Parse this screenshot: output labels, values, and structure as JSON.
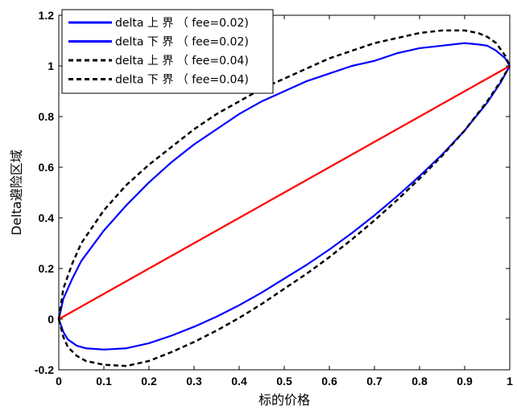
{
  "chart_data": {
    "type": "line",
    "xlabel": "标的价格",
    "ylabel": "Delta避险区域",
    "xlim": [
      0,
      1
    ],
    "ylim": [
      -0.2,
      1.2
    ],
    "xticks": [
      "0",
      "0.1",
      "0.2",
      "0.3",
      "0.4",
      "0.5",
      "0.6",
      "0.7",
      "0.8",
      "0.9",
      "1"
    ],
    "yticks": [
      "-0.2",
      "0",
      "0.2",
      "0.4",
      "0.6",
      "0.8",
      "1",
      "1.2"
    ],
    "legend_position": "top-left",
    "series": [
      {
        "name": "delta 上 界 （ fee=0.02)",
        "color": "#0000ff",
        "style": "solid",
        "in_legend": true,
        "x": [
          0,
          0.01,
          0.03,
          0.05,
          0.1,
          0.15,
          0.2,
          0.25,
          0.3,
          0.35,
          0.4,
          0.45,
          0.5,
          0.55,
          0.6,
          0.65,
          0.7,
          0.75,
          0.8,
          0.85,
          0.9,
          0.93,
          0.95,
          0.97,
          0.99,
          1
        ],
        "y": [
          0,
          0.08,
          0.16,
          0.23,
          0.35,
          0.45,
          0.54,
          0.62,
          0.69,
          0.75,
          0.81,
          0.86,
          0.9,
          0.94,
          0.97,
          1.0,
          1.02,
          1.05,
          1.07,
          1.08,
          1.09,
          1.085,
          1.08,
          1.06,
          1.03,
          1
        ]
      },
      {
        "name": "delta 下 界 （ fee=0.02)",
        "color": "#0000ff",
        "style": "solid",
        "in_legend": true,
        "x": [
          0,
          0.01,
          0.02,
          0.04,
          0.06,
          0.1,
          0.15,
          0.2,
          0.25,
          0.3,
          0.35,
          0.4,
          0.45,
          0.5,
          0.55,
          0.6,
          0.65,
          0.7,
          0.75,
          0.8,
          0.85,
          0.9,
          0.95,
          0.98,
          1
        ],
        "y": [
          0,
          -0.05,
          -0.08,
          -0.105,
          -0.115,
          -0.12,
          -0.115,
          -0.095,
          -0.065,
          -0.03,
          0.01,
          0.055,
          0.105,
          0.16,
          0.215,
          0.275,
          0.34,
          0.41,
          0.485,
          0.565,
          0.65,
          0.745,
          0.855,
          0.935,
          1
        ]
      },
      {
        "name": "delta 上 界 （ fee=0.04)",
        "color": "#000000",
        "style": "dashed",
        "in_legend": true,
        "x": [
          0,
          0.01,
          0.03,
          0.05,
          0.1,
          0.15,
          0.2,
          0.25,
          0.3,
          0.35,
          0.4,
          0.45,
          0.5,
          0.55,
          0.6,
          0.65,
          0.7,
          0.75,
          0.8,
          0.85,
          0.9,
          0.93,
          0.95,
          0.97,
          0.99,
          1
        ],
        "y": [
          0,
          0.12,
          0.22,
          0.3,
          0.43,
          0.53,
          0.61,
          0.68,
          0.75,
          0.81,
          0.86,
          0.91,
          0.95,
          0.99,
          1.03,
          1.06,
          1.09,
          1.11,
          1.13,
          1.14,
          1.14,
          1.13,
          1.115,
          1.09,
          1.04,
          1
        ]
      },
      {
        "name": "delta 下 界 （ fee=0.04)",
        "color": "#000000",
        "style": "dashed",
        "in_legend": true,
        "x": [
          0,
          0.01,
          0.02,
          0.04,
          0.06,
          0.1,
          0.15,
          0.2,
          0.25,
          0.3,
          0.35,
          0.4,
          0.45,
          0.5,
          0.55,
          0.6,
          0.65,
          0.7,
          0.75,
          0.8,
          0.85,
          0.9,
          0.95,
          0.98,
          1
        ],
        "y": [
          0,
          -0.07,
          -0.11,
          -0.145,
          -0.165,
          -0.18,
          -0.185,
          -0.165,
          -0.13,
          -0.09,
          -0.045,
          0.005,
          0.06,
          0.12,
          0.18,
          0.245,
          0.315,
          0.39,
          0.47,
          0.555,
          0.645,
          0.745,
          0.86,
          0.94,
          1
        ]
      },
      {
        "name": "",
        "color": "#ff0000",
        "style": "solid",
        "in_legend": false,
        "x": [
          0,
          0.1,
          0.2,
          0.3,
          0.4,
          0.5,
          0.6,
          0.7,
          0.8,
          0.9,
          1
        ],
        "y": [
          0,
          0.1,
          0.2,
          0.3,
          0.4,
          0.5,
          0.6,
          0.7,
          0.8,
          0.9,
          1
        ]
      }
    ]
  }
}
